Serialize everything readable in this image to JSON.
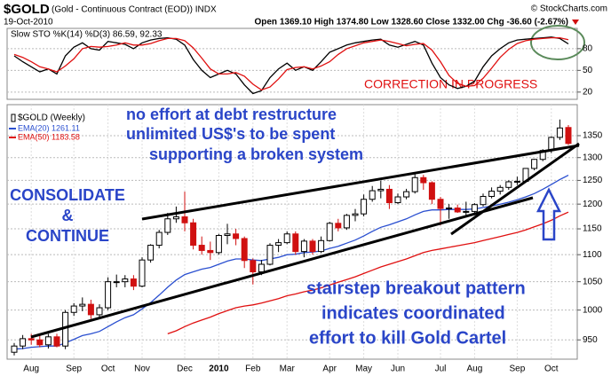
{
  "header": {
    "symbol": "$GOLD",
    "description": "(Gold - Continuous Contract (EOD)) INDX",
    "date": "19-Oct-2010",
    "quote": "Open 1369.10 High 1374.80 Low 1328.60 Close 1332.00 Chg -36.60 (-2.67%)",
    "copyright": "© StockCharts.com"
  },
  "chart_data": [
    {
      "type": "line",
      "title": "Slow STO %K(14) %D(3) 86.59, 92.33",
      "series": [
        {
          "color": "#000000",
          "values": [
            70,
            62,
            55,
            48,
            52,
            45,
            70,
            82,
            88,
            80,
            78,
            90,
            88,
            86,
            80,
            88,
            92,
            94,
            95,
            93,
            85,
            65,
            50,
            40,
            45,
            50,
            45,
            30,
            18,
            22,
            40,
            52,
            60,
            50,
            55,
            50,
            62,
            75,
            80,
            85,
            88,
            90,
            92,
            93,
            85,
            82,
            86,
            90,
            85,
            60,
            40,
            30,
            25,
            28,
            35,
            55,
            70,
            80,
            88,
            92,
            93,
            94,
            95,
            96,
            94,
            86.59
          ]
        },
        {
          "color": "#e01010",
          "values": [
            72,
            68,
            62,
            55,
            52,
            48,
            56,
            66,
            80,
            83,
            82,
            83,
            85,
            88,
            85,
            85,
            87,
            91,
            94,
            94,
            91,
            81,
            67,
            52,
            45,
            45,
            47,
            42,
            31,
            23,
            27,
            38,
            51,
            54,
            55,
            52,
            56,
            62,
            72,
            80,
            84,
            88,
            90,
            92,
            90,
            87,
            84,
            86,
            87,
            78,
            62,
            43,
            32,
            28,
            29,
            39,
            53,
            68,
            79,
            87,
            91,
            93,
            94,
            95,
            95,
            92.33
          ]
        }
      ],
      "ylim": [
        10,
        108
      ],
      "yticks": [
        80,
        50,
        20
      ],
      "grid": true,
      "annotations": [
        "CORRECTION IN PROGRESS"
      ]
    },
    {
      "type": "candlestick",
      "name": "$GOLD (Weekly)",
      "log_scale": true,
      "categories": [
        null,
        null,
        "Aug",
        null,
        null,
        null,
        null,
        "Sep",
        null,
        null,
        null,
        "Oct",
        null,
        null,
        null,
        "Nov",
        null,
        null,
        null,
        null,
        "Dec",
        null,
        null,
        null,
        "2010",
        null,
        null,
        null,
        "Feb",
        null,
        null,
        null,
        "Mar",
        null,
        null,
        null,
        null,
        "Apr",
        null,
        null,
        null,
        "May",
        null,
        null,
        null,
        "Jun",
        null,
        null,
        null,
        null,
        "Jul",
        null,
        null,
        null,
        "Aug",
        null,
        null,
        null,
        null,
        "Sep",
        null,
        null,
        null,
        "Oct",
        null,
        null
      ],
      "open": [
        930,
        940,
        952,
        950,
        942,
        955,
        940,
        996,
        1007,
        1010,
        992,
        1004,
        1050,
        1050,
        1055,
        1042,
        1090,
        1118,
        1143,
        1170,
        1174,
        1162,
        1118,
        1108,
        1104,
        1137,
        1140,
        1131,
        1089,
        1068,
        1082,
        1118,
        1123,
        1140,
        1106,
        1126,
        1106,
        1127,
        1161,
        1152,
        1177,
        1180,
        1210,
        1228,
        1231,
        1203,
        1215,
        1226,
        1256,
        1245,
        1210,
        1191,
        1192,
        1184,
        1185,
        1199,
        1216,
        1227,
        1235,
        1247,
        1248,
        1276,
        1296,
        1316,
        1346,
        1369.1
      ],
      "high": [
        945,
        958,
        960,
        958,
        960,
        960,
        1000,
        1012,
        1022,
        1018,
        1010,
        1058,
        1063,
        1062,
        1062,
        1095,
        1120,
        1148,
        1182,
        1195,
        1226,
        1170,
        1135,
        1125,
        1140,
        1160,
        1150,
        1135,
        1093,
        1090,
        1122,
        1130,
        1145,
        1145,
        1130,
        1130,
        1135,
        1164,
        1170,
        1180,
        1190,
        1220,
        1238,
        1249,
        1240,
        1222,
        1232,
        1264,
        1262,
        1248,
        1215,
        1200,
        1199,
        1205,
        1202,
        1222,
        1235,
        1240,
        1250,
        1258,
        1275,
        1297,
        1319,
        1348,
        1388,
        1374.8
      ],
      "low": [
        925,
        935,
        942,
        938,
        936,
        938,
        935,
        990,
        998,
        985,
        985,
        1000,
        1040,
        1040,
        1035,
        1040,
        1085,
        1112,
        1138,
        1162,
        1145,
        1110,
        1100,
        1090,
        1100,
        1120,
        1118,
        1075,
        1045,
        1062,
        1080,
        1105,
        1120,
        1100,
        1095,
        1100,
        1103,
        1125,
        1145,
        1148,
        1165,
        1175,
        1205,
        1212,
        1190,
        1200,
        1210,
        1222,
        1230,
        1200,
        1157,
        1170,
        1182,
        1175,
        1180,
        1195,
        1212,
        1220,
        1230,
        1240,
        1245,
        1272,
        1292,
        1310,
        1340,
        1328.6
      ],
      "close": [
        940,
        952,
        950,
        942,
        955,
        940,
        996,
        1007,
        1010,
        992,
        1004,
        1050,
        1050,
        1055,
        1042,
        1090,
        1118,
        1143,
        1170,
        1174,
        1162,
        1118,
        1108,
        1104,
        1137,
        1140,
        1131,
        1089,
        1068,
        1082,
        1118,
        1123,
        1140,
        1106,
        1126,
        1106,
        1127,
        1161,
        1152,
        1177,
        1180,
        1210,
        1228,
        1231,
        1203,
        1215,
        1226,
        1256,
        1245,
        1210,
        1191,
        1192,
        1184,
        1185,
        1199,
        1216,
        1227,
        1235,
        1247,
        1248,
        1276,
        1296,
        1316,
        1346,
        1368,
        1332
      ],
      "up_color": "#000000",
      "down_color": "#d01010",
      "series": [
        {
          "name": "EMA(20) 1261.11",
          "color": "#2a4fd0",
          "values": [
            935,
            936,
            938,
            939,
            940,
            940,
            945,
            951,
            957,
            960,
            964,
            972,
            980,
            987,
            992,
            1002,
            1013,
            1026,
            1040,
            1053,
            1063,
            1068,
            1073,
            1076,
            1082,
            1088,
            1092,
            1092,
            1090,
            1089,
            1092,
            1095,
            1100,
            1101,
            1104,
            1105,
            1107,
            1112,
            1116,
            1122,
            1128,
            1136,
            1145,
            1153,
            1158,
            1164,
            1170,
            1178,
            1185,
            1188,
            1188,
            1189,
            1189,
            1189,
            1190,
            1193,
            1196,
            1200,
            1204,
            1209,
            1215,
            1222,
            1231,
            1241,
            1252,
            1261.11
          ]
        },
        {
          "name": "EMA(50) 1183.58",
          "color": "#e01010",
          "values": [
            null,
            null,
            null,
            null,
            null,
            null,
            null,
            null,
            null,
            null,
            null,
            null,
            null,
            null,
            null,
            null,
            null,
            null,
            960,
            965,
            972,
            978,
            983,
            988,
            994,
            999,
            1004,
            1007,
            1009,
            1012,
            1016,
            1020,
            1025,
            1028,
            1032,
            1035,
            1039,
            1044,
            1049,
            1054,
            1059,
            1065,
            1071,
            1077,
            1082,
            1087,
            1092,
            1098,
            1104,
            1108,
            1111,
            1114,
            1117,
            1120,
            1123,
            1127,
            1131,
            1135,
            1139,
            1143,
            1148,
            1154,
            1160,
            1167,
            1176,
            1183.58
          ]
        }
      ],
      "ylim": [
        919,
        1424
      ],
      "yticks": [
        950,
        1000,
        1050,
        1100,
        1150,
        1200,
        1250,
        1300,
        1350
      ],
      "grid": true,
      "annotations": [
        "no effort at debt restructure",
        "unlimited US$'s to be spent",
        "supporting a broken system",
        "CONSOLIDATE",
        "&",
        "CONTINUE",
        "stairstep breakout pattern",
        "indicates coordinated",
        "effort to kill Gold Cartel"
      ]
    }
  ]
}
